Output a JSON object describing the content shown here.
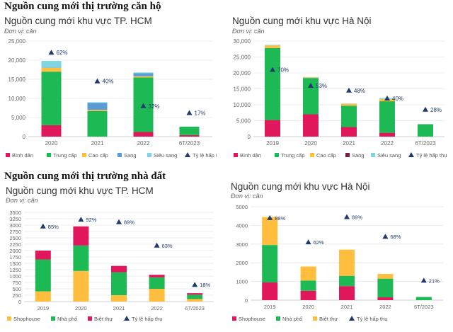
{
  "sections": [
    {
      "title": "Nguồn cung mới thị trường căn hộ"
    },
    {
      "title": "Nguồn cung mới thị trường nhà đất"
    }
  ],
  "legend_ratio_label": "Tỷ lệ hấp thụ",
  "chart_data": [
    {
      "type": "bar",
      "stacked": true,
      "title": "Nguồn cung mới khu vực TP. HCM",
      "unit": "Đơn vị: căn",
      "categories": [
        "2020",
        "2021",
        "2022",
        "6T/2023"
      ],
      "ylim": [
        0,
        25000
      ],
      "yticks": [
        0,
        5000,
        10000,
        15000,
        20000,
        25000
      ],
      "ytick_labels": [
        "0",
        "5,000",
        "10,000",
        "15,000",
        "20,000",
        "25,000"
      ],
      "grid": true,
      "legend_position": "bottom",
      "series": [
        {
          "name": "Bình dân",
          "color": "#e0175a",
          "values": [
            3000,
            0,
            1200,
            400
          ]
        },
        {
          "name": "Trung cấp",
          "color": "#1db954",
          "values": [
            14000,
            6700,
            14300,
            2200
          ]
        },
        {
          "name": "Cao cấp",
          "color": "#ffbe3d",
          "values": [
            1000,
            300,
            300,
            0
          ]
        },
        {
          "name": "Sang",
          "color": "#5b9bd5",
          "values": [
            100,
            1800,
            800,
            0
          ]
        },
        {
          "name": "Siêu sang",
          "color": "#7fd6e0",
          "values": [
            1700,
            200,
            200,
            0
          ]
        }
      ],
      "ratio": {
        "name": "Tỷ lệ hấp thụ",
        "values": [
          62,
          40,
          32,
          17
        ],
        "labels": [
          "62%",
          "40%",
          "32%",
          "17%"
        ],
        "marker_y": [
          22000,
          14500,
          8000,
          6200
        ]
      }
    },
    {
      "type": "bar",
      "stacked": true,
      "title": "Nguồn cung mới khu vực Hà Nội",
      "unit": "Đơn vị: căn",
      "categories": [
        "2019",
        "2020",
        "2021",
        "2022",
        "6T/2023"
      ],
      "ylim": [
        0,
        30000
      ],
      "yticks": [
        0,
        5000,
        10000,
        15000,
        20000,
        25000,
        30000
      ],
      "ytick_labels": [
        "0",
        "5,000",
        "10,000",
        "15,000",
        "20,000",
        "25,000",
        "30,000"
      ],
      "grid": true,
      "legend_position": "bottom",
      "series": [
        {
          "name": "Bình dân",
          "color": "#e0175a",
          "values": [
            5200,
            7000,
            3000,
            1200,
            0
          ]
        },
        {
          "name": "Trung cấp",
          "color": "#1db954",
          "values": [
            22600,
            11400,
            6700,
            9900,
            3900
          ]
        },
        {
          "name": "Cao cấp",
          "color": "#ffbe3d",
          "values": [
            800,
            200,
            600,
            700,
            0
          ]
        },
        {
          "name": "Sang",
          "color": "#7a1f3d",
          "values": [
            0,
            0,
            0,
            0,
            0
          ]
        },
        {
          "name": "Siêu sang",
          "color": "#7fd6e0",
          "values": [
            200,
            100,
            100,
            300,
            0
          ]
        }
      ],
      "ratio": {
        "name": "Tỷ lệ hấp thụ",
        "values": [
          70,
          53,
          48,
          40,
          28
        ],
        "labels": [
          "70%",
          "53%",
          "48%",
          "40%",
          "28%"
        ],
        "marker_y": [
          21000,
          16000,
          14500,
          12000,
          8500
        ]
      }
    },
    {
      "type": "bar",
      "stacked": true,
      "title": "Nguồn cung mới khu vực TP. HCM",
      "unit": "Đơn vị: căn",
      "categories": [
        "2019",
        "2020",
        "2021",
        "2022",
        "6T/2023"
      ],
      "ylim": [
        0,
        3500
      ],
      "yticks": [
        0,
        250,
        500,
        750,
        1000,
        1250,
        1500,
        1750,
        2000,
        2250,
        2500,
        2750,
        3000,
        3250,
        3500
      ],
      "ytick_labels": [
        "0",
        "250",
        "500",
        "750",
        "1000",
        "1250",
        "1500",
        "1750",
        "2000",
        "2250",
        "2500",
        "2750",
        "3000",
        "3250",
        "3500"
      ],
      "grid": true,
      "legend_position": "bottom",
      "series": [
        {
          "name": "Shophouse",
          "color": "#ffbe3d",
          "values": [
            400,
            1200,
            250,
            500,
            100
          ]
        },
        {
          "name": "Nhà phố",
          "color": "#1db954",
          "values": [
            1250,
            1000,
            900,
            450,
            170
          ]
        },
        {
          "name": "Biệt thự",
          "color": "#e0175a",
          "values": [
            350,
            750,
            250,
            100,
            60
          ]
        }
      ],
      "ratio": {
        "name": "Tỷ lệ hấp thụ",
        "values": [
          85,
          92,
          89,
          63,
          18
        ],
        "labels": [
          "85%",
          "92%",
          "89%",
          "63%",
          "18%"
        ],
        "marker_y": [
          2950,
          3220,
          3120,
          2200,
          660
        ]
      }
    },
    {
      "type": "bar",
      "stacked": true,
      "title": "Nguồn cung mới khu vực Hà Nội",
      "unit": "Đơn vị: căn",
      "categories": [
        "2019",
        "2020",
        "2021",
        "2022",
        "6T/2023"
      ],
      "ylim": [
        0,
        5000
      ],
      "yticks": [
        0,
        1000,
        2000,
        3000,
        4000,
        5000
      ],
      "ytick_labels": [
        "0",
        "1000",
        "2000",
        "3000",
        "4000",
        "5000"
      ],
      "grid": true,
      "legend_position": "bottom",
      "series": [
        {
          "name": "Shophouse",
          "color": "#e0175a",
          "values": [
            950,
            500,
            750,
            150,
            0
          ]
        },
        {
          "name": "Nhà phố",
          "color": "#1db954",
          "values": [
            2000,
            550,
            550,
            1000,
            170
          ]
        },
        {
          "name": "Biệt thự",
          "color": "#ffbe3d",
          "values": [
            1500,
            750,
            1400,
            250,
            0
          ]
        }
      ],
      "ratio": {
        "name": "Tỷ lệ hấp thụ",
        "values": [
          88,
          62,
          89,
          68,
          21
        ],
        "labels": [
          "88%",
          "62%",
          "89%",
          "68%",
          "21%"
        ],
        "marker_y": [
          4400,
          3100,
          4450,
          3400,
          1050
        ]
      }
    }
  ]
}
